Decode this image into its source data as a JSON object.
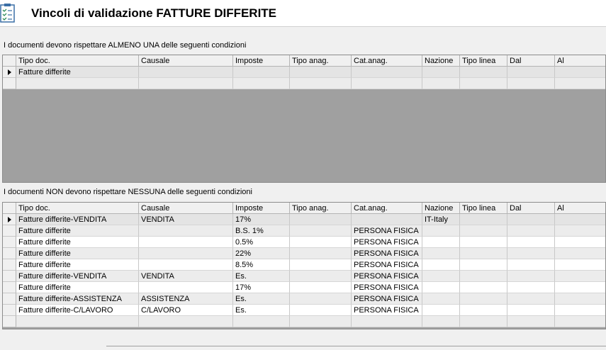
{
  "header": {
    "title": "Vincoli di validazione FATTURE DIFFERITE"
  },
  "section1": {
    "label": "I documenti devono rispettare ALMENO UNA delle seguenti condizioni",
    "columns": [
      "Tipo doc.",
      "Causale",
      "Imposte",
      "Tipo anag.",
      "Cat.anag.",
      "Nazione",
      "Tipo linea",
      "Dal",
      "Al"
    ],
    "rows": [
      [
        "Fatture differite",
        "",
        "",
        "",
        "",
        "",
        "",
        "",
        ""
      ]
    ]
  },
  "section2": {
    "label": "I documenti NON devono rispettare NESSUNA delle seguenti condizioni",
    "columns": [
      "Tipo doc.",
      "Causale",
      "Imposte",
      "Tipo anag.",
      "Cat.anag.",
      "Nazione",
      "Tipo linea",
      "Dal",
      "Al"
    ],
    "rows": [
      [
        "Fatture differite-VENDITA",
        "VENDITA",
        "17%",
        "",
        "",
        "IT-Italy",
        "",
        "",
        ""
      ],
      [
        "Fatture differite",
        "",
        "B.S. 1%",
        "",
        "PERSONA FISICA",
        "",
        "",
        "",
        ""
      ],
      [
        "Fatture differite",
        "",
        "0.5%",
        "",
        "PERSONA FISICA",
        "",
        "",
        "",
        ""
      ],
      [
        "Fatture differite",
        "",
        "22%",
        "",
        "PERSONA FISICA",
        "",
        "",
        "",
        ""
      ],
      [
        "Fatture differite",
        "",
        "8.5%",
        "",
        "PERSONA FISICA",
        "",
        "",
        "",
        ""
      ],
      [
        "Fatture differite-VENDITA",
        "VENDITA",
        "Es.",
        "",
        "PERSONA FISICA",
        "",
        "",
        "",
        ""
      ],
      [
        "Fatture differite",
        "",
        "17%",
        "",
        "PERSONA FISICA",
        "",
        "",
        "",
        ""
      ],
      [
        "Fatture differite-ASSISTENZA",
        "ASSISTENZA",
        "Es.",
        "",
        "PERSONA FISICA",
        "",
        "",
        "",
        ""
      ],
      [
        "Fatture differite-C/LAVORO",
        "C/LAVORO",
        "Es.",
        "",
        "PERSONA FISICA",
        "",
        "",
        "",
        ""
      ]
    ]
  }
}
